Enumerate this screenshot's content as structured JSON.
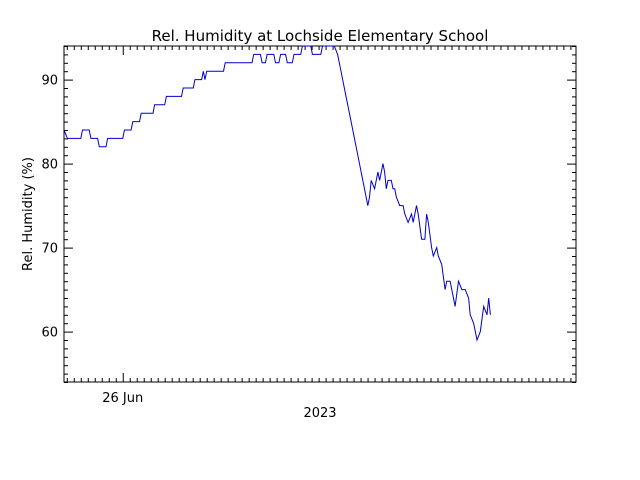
{
  "chart_data": {
    "type": "line",
    "title": "Rel. Humidity at Lochside Elementary School",
    "ylabel": "Rel. Humidity (%)",
    "xlabel": "2023",
    "ylim": [
      54,
      94
    ],
    "xlim": [
      -0.35,
      2.7
    ],
    "x_unit": "days relative to 26 Jun 2023",
    "x_ticks": [
      {
        "value": 0,
        "label": "26 Jun"
      }
    ],
    "y_ticks": [
      60,
      70,
      80,
      90
    ],
    "grid": false,
    "colors": {
      "line": "#0000cc"
    },
    "series": [
      {
        "points": [
          [
            -0.35,
            84
          ],
          [
            -0.33,
            83
          ],
          [
            -0.25,
            83
          ],
          [
            -0.24,
            84
          ],
          [
            -0.2,
            84
          ],
          [
            -0.19,
            83
          ],
          [
            -0.15,
            83
          ],
          [
            -0.14,
            82
          ],
          [
            -0.1,
            82
          ],
          [
            -0.09,
            83
          ],
          [
            0.0,
            83
          ],
          [
            0.01,
            84
          ],
          [
            0.05,
            84
          ],
          [
            0.06,
            85
          ],
          [
            0.1,
            85
          ],
          [
            0.11,
            86
          ],
          [
            0.18,
            86
          ],
          [
            0.19,
            87
          ],
          [
            0.25,
            87
          ],
          [
            0.26,
            88
          ],
          [
            0.35,
            88
          ],
          [
            0.36,
            89
          ],
          [
            0.42,
            89
          ],
          [
            0.43,
            90
          ],
          [
            0.47,
            90
          ],
          [
            0.48,
            91
          ],
          [
            0.49,
            90
          ],
          [
            0.5,
            91
          ],
          [
            0.6,
            91
          ],
          [
            0.61,
            92
          ],
          [
            0.77,
            92
          ],
          [
            0.78,
            93
          ],
          [
            0.82,
            93
          ],
          [
            0.83,
            92
          ],
          [
            0.85,
            92
          ],
          [
            0.86,
            93
          ],
          [
            0.9,
            93
          ],
          [
            0.91,
            92
          ],
          [
            0.93,
            92
          ],
          [
            0.94,
            93
          ],
          [
            0.97,
            93
          ],
          [
            0.98,
            92
          ],
          [
            1.01,
            92
          ],
          [
            1.02,
            93
          ],
          [
            1.06,
            93
          ],
          [
            1.07,
            94
          ],
          [
            1.12,
            94
          ],
          [
            1.13,
            93
          ],
          [
            1.18,
            93
          ],
          [
            1.19,
            94
          ],
          [
            1.26,
            94
          ],
          [
            1.28,
            93
          ],
          [
            1.3,
            91
          ],
          [
            1.33,
            88
          ],
          [
            1.36,
            85
          ],
          [
            1.4,
            81
          ],
          [
            1.43,
            78
          ],
          [
            1.46,
            75
          ],
          [
            1.47,
            76
          ],
          [
            1.48,
            78
          ],
          [
            1.5,
            77
          ],
          [
            1.52,
            79
          ],
          [
            1.53,
            78
          ],
          [
            1.55,
            80
          ],
          [
            1.56,
            79
          ],
          [
            1.57,
            77
          ],
          [
            1.58,
            78
          ],
          [
            1.6,
            78
          ],
          [
            1.61,
            77
          ],
          [
            1.62,
            77
          ],
          [
            1.63,
            76
          ],
          [
            1.65,
            75
          ],
          [
            1.67,
            75
          ],
          [
            1.68,
            74
          ],
          [
            1.7,
            73
          ],
          [
            1.72,
            74
          ],
          [
            1.73,
            73
          ],
          [
            1.75,
            75
          ],
          [
            1.76,
            74
          ],
          [
            1.78,
            71
          ],
          [
            1.8,
            71
          ],
          [
            1.81,
            74
          ],
          [
            1.82,
            73
          ],
          [
            1.84,
            70
          ],
          [
            1.85,
            69
          ],
          [
            1.87,
            70
          ],
          [
            1.88,
            69
          ],
          [
            1.9,
            68
          ],
          [
            1.92,
            65
          ],
          [
            1.93,
            66
          ],
          [
            1.95,
            66
          ],
          [
            1.96,
            65
          ],
          [
            1.98,
            63
          ],
          [
            2.0,
            66
          ],
          [
            2.02,
            65
          ],
          [
            2.04,
            65
          ],
          [
            2.06,
            64
          ],
          [
            2.07,
            62
          ],
          [
            2.09,
            61
          ],
          [
            2.11,
            59
          ],
          [
            2.13,
            60
          ],
          [
            2.15,
            63
          ],
          [
            2.17,
            62
          ],
          [
            2.18,
            64
          ],
          [
            2.19,
            62
          ]
        ]
      }
    ]
  }
}
